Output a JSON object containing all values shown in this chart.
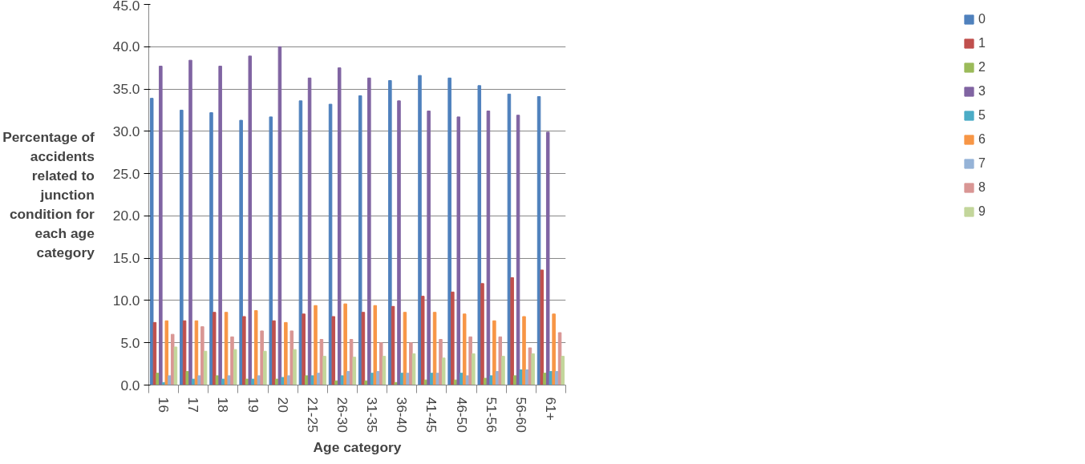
{
  "chart_data": {
    "type": "bar",
    "xlabel": "Age category",
    "ylabel": "Percentage of accidents related to junction condition for each age category",
    "categories": [
      "16",
      "17",
      "18",
      "19",
      "20",
      "21-25",
      "26-30",
      "31-35",
      "36-40",
      "41-45",
      "46-50",
      "51-56",
      "56-60",
      "61+"
    ],
    "series": [
      {
        "name": "0",
        "color": "#4f81bd",
        "values": [
          33.9,
          32.5,
          32.2,
          31.3,
          31.7,
          33.6,
          33.2,
          34.2,
          36.0,
          36.6,
          36.3,
          35.4,
          34.4,
          34.1
        ]
      },
      {
        "name": "1",
        "color": "#c0504d",
        "values": [
          7.4,
          7.6,
          8.6,
          8.1,
          7.6,
          8.4,
          8.1,
          8.6,
          9.3,
          10.5,
          11.0,
          12.0,
          12.7,
          13.6
        ]
      },
      {
        "name": "2",
        "color": "#9bbb59",
        "values": [
          1.4,
          1.6,
          1.1,
          0.7,
          0.7,
          1.1,
          0.5,
          0.5,
          0.3,
          0.6,
          0.6,
          0.8,
          1.1,
          1.4
        ]
      },
      {
        "name": "3",
        "color": "#8064a2",
        "values": [
          37.7,
          38.4,
          37.7,
          38.9,
          40.0,
          36.3,
          37.5,
          36.3,
          33.6,
          32.4,
          31.7,
          32.4,
          31.9,
          29.9
        ]
      },
      {
        "name": "5",
        "color": "#4bacc6",
        "values": [
          0.3,
          0.7,
          0.7,
          0.7,
          0.9,
          1.1,
          1.1,
          1.4,
          1.4,
          1.4,
          1.4,
          1.1,
          1.8,
          1.6
        ]
      },
      {
        "name": "6",
        "color": "#f79646",
        "values": [
          7.6,
          7.6,
          8.6,
          8.8,
          7.4,
          9.4,
          9.6,
          9.4,
          8.6,
          8.6,
          8.4,
          7.6,
          8.1,
          8.4
        ]
      },
      {
        "name": "7",
        "color": "#95b3d7",
        "values": [
          1.1,
          1.1,
          1.1,
          1.1,
          1.1,
          1.4,
          1.6,
          1.6,
          1.4,
          1.4,
          1.1,
          1.6,
          1.8,
          1.6
        ]
      },
      {
        "name": "8",
        "color": "#d99694",
        "values": [
          6.0,
          6.9,
          5.7,
          6.4,
          6.4,
          5.4,
          5.4,
          5.0,
          5.0,
          5.4,
          5.7,
          5.7,
          4.4,
          6.2
        ]
      },
      {
        "name": "9",
        "color": "#c3d69b",
        "values": [
          4.5,
          4.0,
          4.2,
          4.0,
          4.2,
          3.4,
          3.3,
          3.4,
          3.7,
          3.2,
          3.7,
          3.4,
          3.7,
          3.4
        ]
      }
    ],
    "ylim": [
      0,
      45
    ],
    "yticks": [
      {
        "value": 0,
        "label": "0.0"
      },
      {
        "value": 5,
        "label": "5.0"
      },
      {
        "value": 10,
        "label": "10.0"
      },
      {
        "value": 15,
        "label": "15.0"
      },
      {
        "value": 20,
        "label": "20.0"
      },
      {
        "value": 25,
        "label": "25.0"
      },
      {
        "value": 30,
        "label": "30.0"
      },
      {
        "value": 35,
        "label": "35.0"
      },
      {
        "value": 40,
        "label": "40.0"
      },
      {
        "value": 45,
        "label": "45.0"
      }
    ],
    "grid": "y",
    "legend": "right"
  }
}
